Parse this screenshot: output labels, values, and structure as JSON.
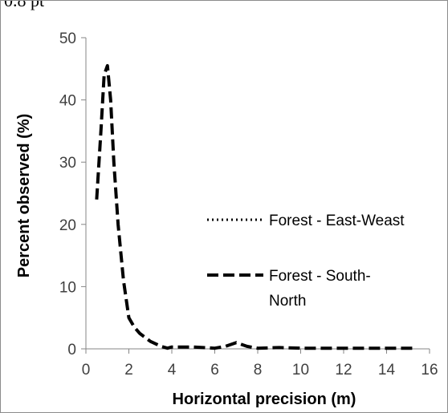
{
  "top_cut_text": "0.8 pt",
  "chart_data": {
    "type": "line",
    "title": "",
    "xlabel": "Horizontal precision (m)",
    "ylabel": "Percent observed (%)",
    "xlim": [
      0,
      16
    ],
    "ylim": [
      0,
      50
    ],
    "x_ticks": [
      "0",
      "2",
      "4",
      "6",
      "8",
      "10",
      "12",
      "14",
      "16"
    ],
    "y_ticks": [
      "0",
      "10",
      "20",
      "30",
      "40",
      "50"
    ],
    "grid": false,
    "legend": {
      "placement": "right"
    },
    "series": [
      {
        "name": "Forest - East-Weast",
        "style": "dotted",
        "color": "#000000",
        "x": [],
        "y": []
      },
      {
        "name": "Forest - South-North",
        "style": "dashed",
        "color": "#000000",
        "x": [
          0.5,
          0.7,
          0.85,
          1.0,
          1.15,
          1.3,
          1.5,
          1.75,
          2.0,
          2.25,
          2.5,
          3.0,
          3.5,
          3.8,
          4.0,
          5.0,
          6.0,
          6.5,
          7.0,
          7.5,
          8.0,
          9.0,
          10.0,
          11.0,
          12.0,
          13.0,
          14.0,
          15.25
        ],
        "y": [
          24,
          35,
          44,
          45.5,
          40,
          30,
          20,
          11,
          5,
          3.5,
          2.5,
          1.2,
          0.4,
          0.1,
          0.3,
          0.3,
          0.1,
          0.4,
          1.0,
          0.4,
          0.1,
          0.2,
          0.1,
          0.1,
          0.1,
          0.1,
          0.1,
          0.1
        ]
      }
    ]
  }
}
